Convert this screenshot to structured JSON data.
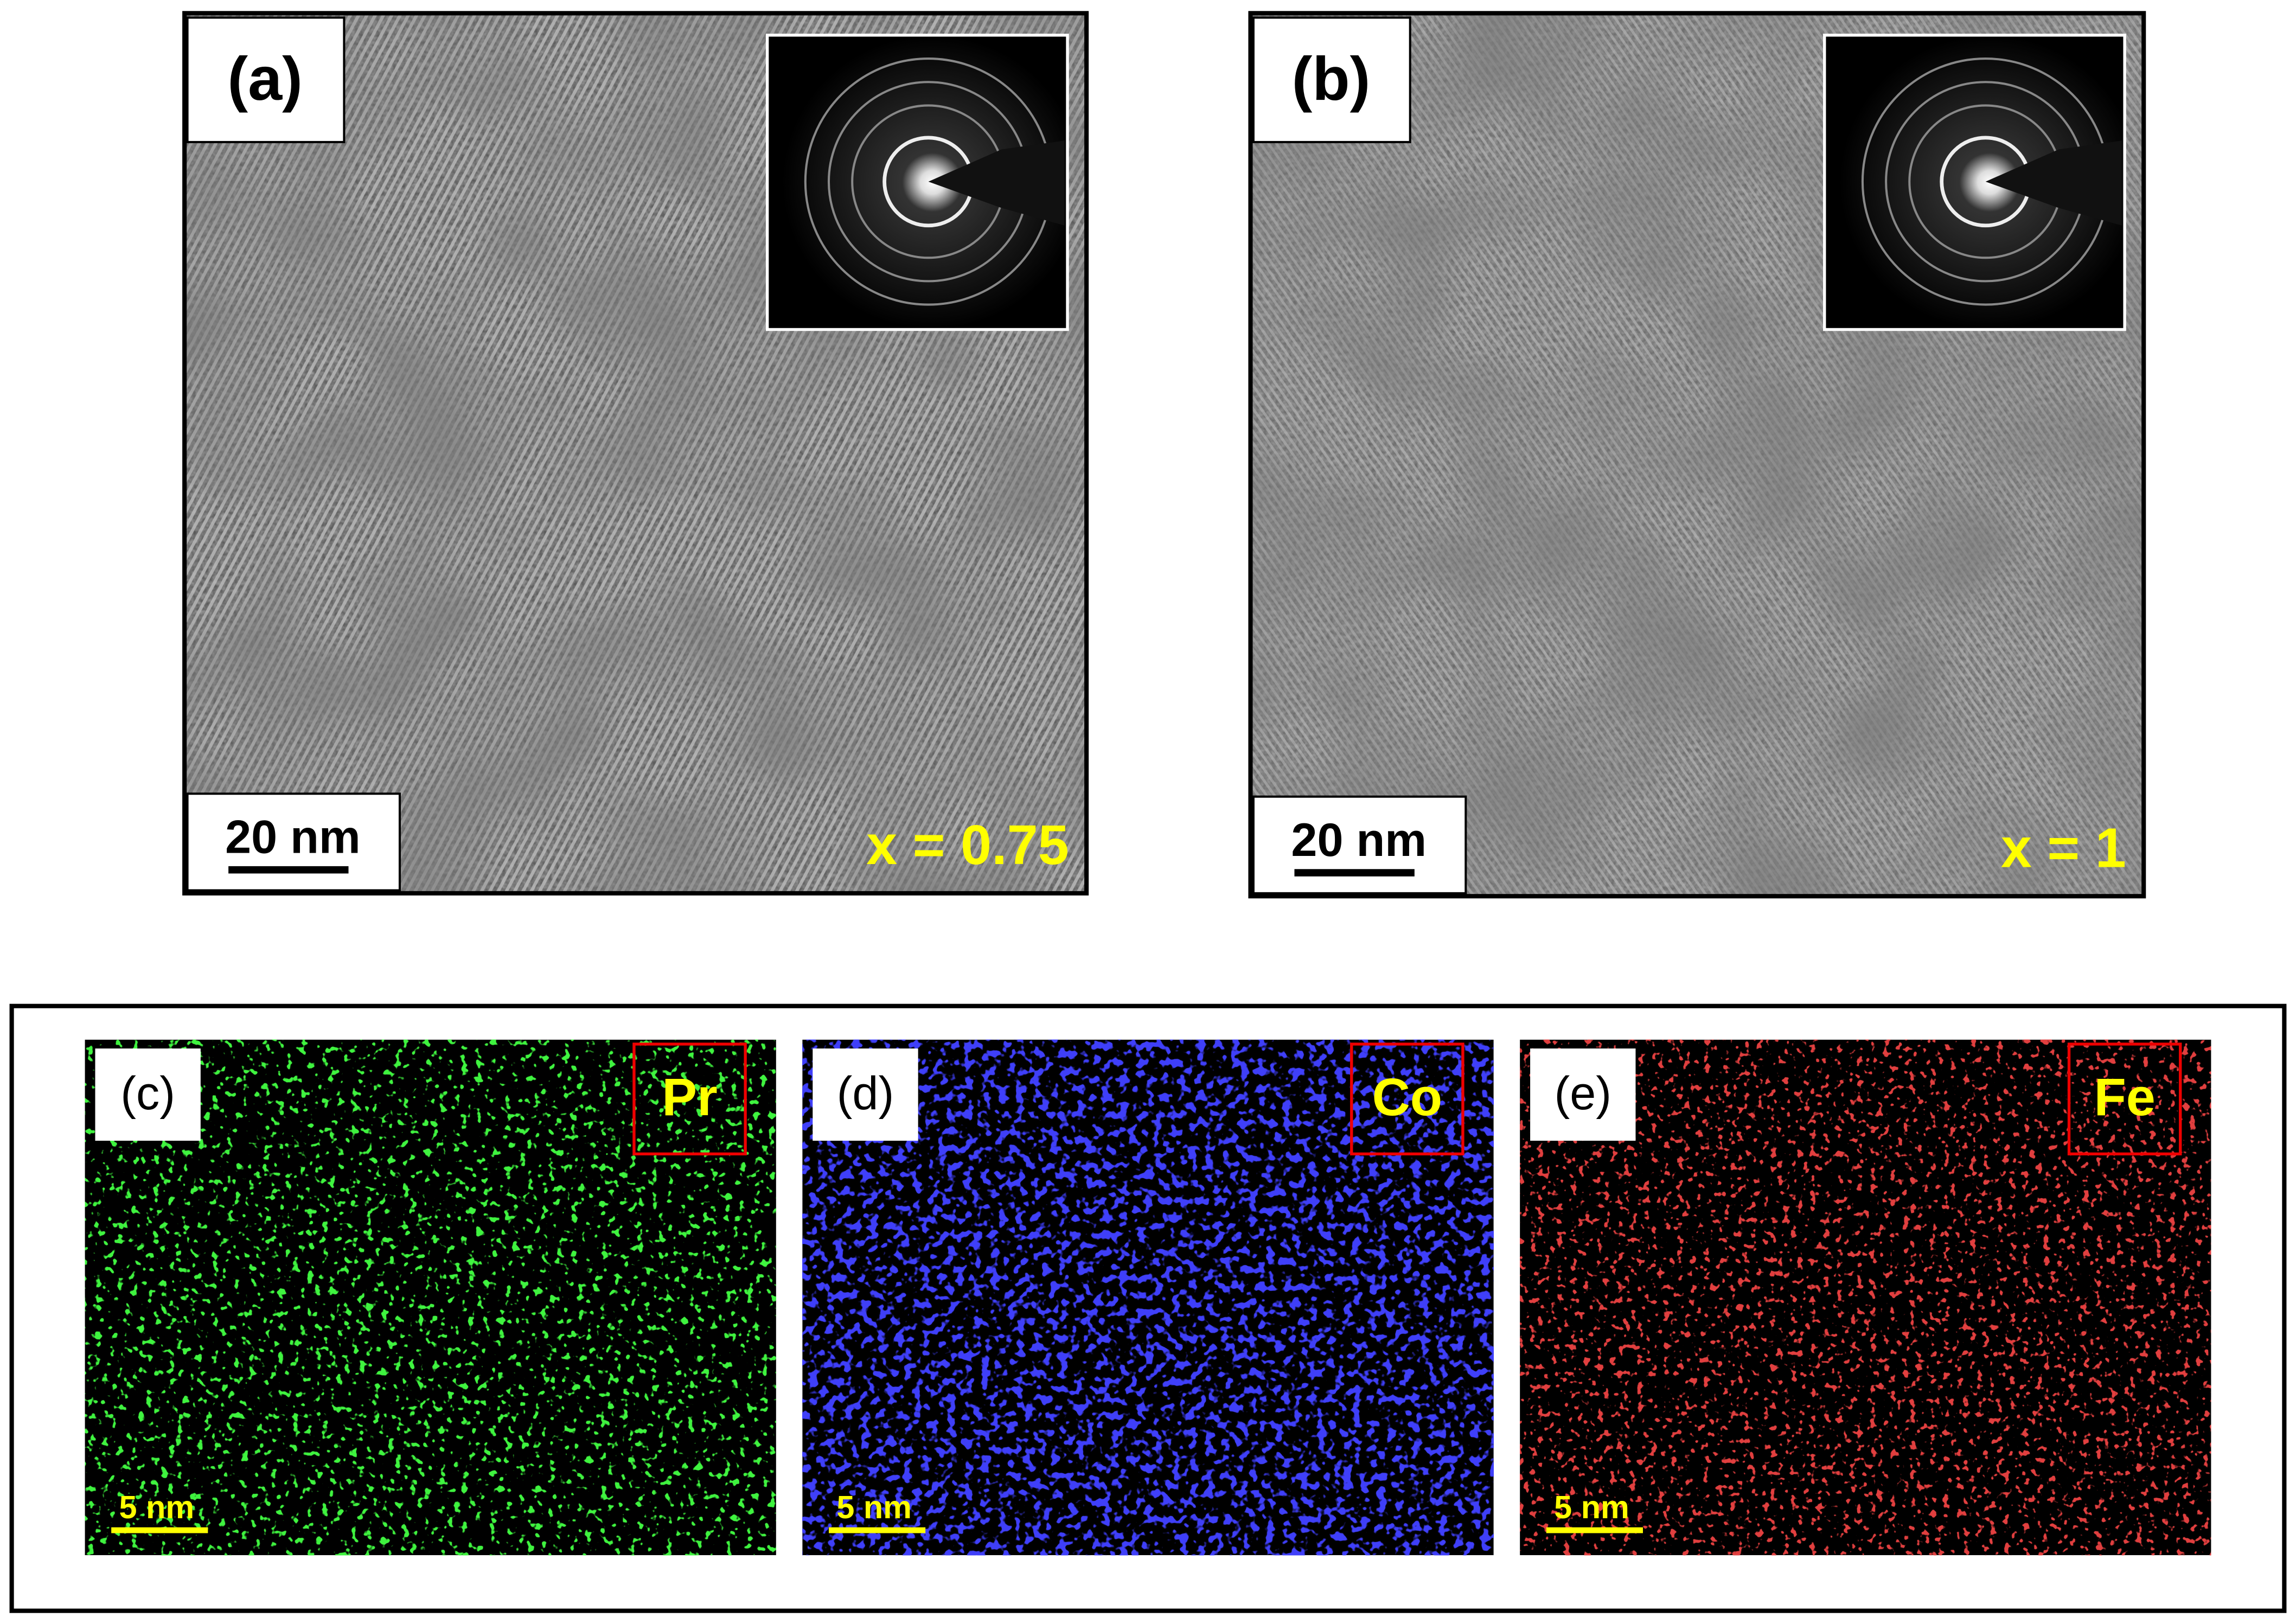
{
  "panels": [
    {
      "label": "(a)",
      "scale_bar": "20 nm",
      "composition": "x = 0.75"
    },
    {
      "label": "(b)",
      "scale_bar": "20 nm",
      "composition": "x = 1"
    }
  ],
  "maps": [
    {
      "label": "(c)",
      "element": "Pr",
      "scale_bar": "5 nm"
    },
    {
      "label": "(d)",
      "element": "Co",
      "scale_bar": "5 nm"
    },
    {
      "label": "(e)",
      "element": "Fe",
      "scale_bar": "5 nm"
    }
  ]
}
